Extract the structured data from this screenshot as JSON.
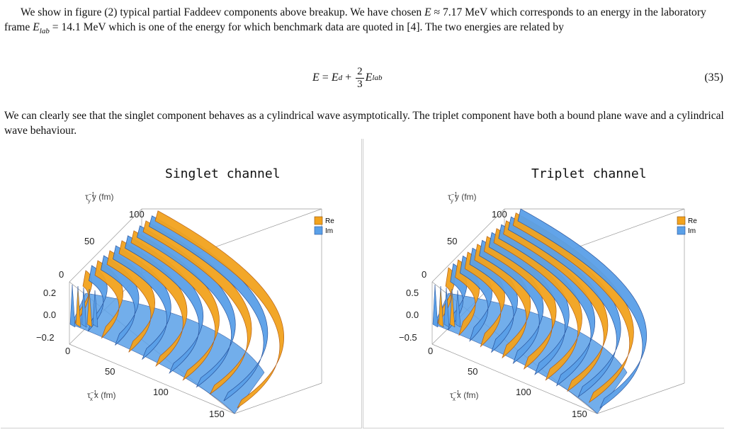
{
  "paragraph1": {
    "part1": "We show in figure (2) typical partial Faddeev components above breakup. We have chosen ",
    "e_symbol": "E",
    "approx": " ≈ 7.17 MeV which corresponds to an energy in the laboratory frame ",
    "elab_symbol": "E",
    "elab_sub": "lab",
    "part2": " = 14.1 MeV which is one of the energy for which benchmark data are quoted in [4]. The two energies are related by"
  },
  "equation": {
    "lhs": "E",
    "equals": " = ",
    "ed_symbol": "E",
    "ed_sub": "d",
    "plus": " + ",
    "frac_num": "2",
    "frac_den": "3",
    "elab_symbol": "E",
    "elab_sub": "lab",
    "number": "(35)"
  },
  "paragraph2": "We can clearly see that the singlet component behaves as a cylindrical wave asymptotically. The triplet component have both a bound plane wave and a cylindrical wave behaviour.",
  "colors": {
    "re": "#f2a31e",
    "im": "#5aa0e8",
    "re_dark": "#b3590b",
    "im_dark": "#244f99"
  },
  "plots": [
    {
      "title": "Singlet channel",
      "legend": [
        "Re",
        "Im"
      ],
      "y_axis_label": "τ",
      "y_axis_sup": "−1",
      "y_axis_sub": "y",
      "y_axis_tail": "y (fm)",
      "x_axis_label": "τ",
      "x_axis_sup": "−1",
      "x_axis_sub": "x",
      "x_axis_tail": "x (fm)",
      "y_ticks": [
        "100",
        "50",
        "0"
      ],
      "z_ticks": [
        "0.2",
        "0.0",
        "−0.2"
      ],
      "x_ticks": [
        "0",
        "50",
        "100",
        "150"
      ]
    },
    {
      "title": "Triplet channel",
      "legend": [
        "Re",
        "Im"
      ],
      "y_axis_label": "τ",
      "y_axis_sup": "−1",
      "y_axis_sub": "y",
      "y_axis_tail": "y (fm)",
      "x_axis_label": "τ",
      "x_axis_sup": "−1",
      "x_axis_sub": "x",
      "x_axis_tail": "x (fm)",
      "y_ticks": [
        "100",
        "50",
        "0"
      ],
      "z_ticks": [
        "0.5",
        "0.0",
        "−0.5"
      ],
      "x_ticks": [
        "0",
        "50",
        "100",
        "150"
      ]
    }
  ]
}
